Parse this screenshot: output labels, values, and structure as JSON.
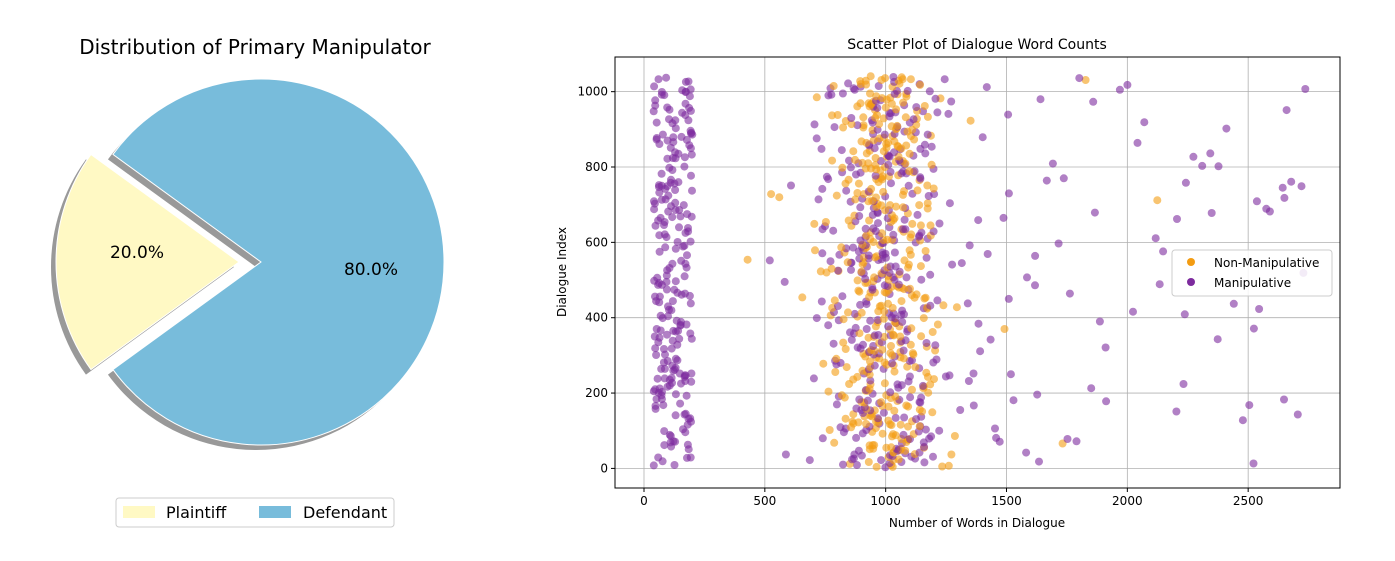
{
  "chart_data": [
    {
      "type": "pie",
      "title": "Distribution of Primary Manipulator",
      "slices": [
        {
          "label": "Plaintiff",
          "value": 20.0,
          "pct_label": "20.0%",
          "color": "#fff9c4",
          "exploded": true
        },
        {
          "label": "Defendant",
          "value": 80.0,
          "pct_label": "80.0%",
          "color": "#78bcdb",
          "exploded": false
        }
      ],
      "shadow": true,
      "legend": {
        "placement": "bottom-center",
        "entries": [
          "Plaintiff",
          "Defendant"
        ]
      }
    },
    {
      "type": "scatter",
      "title": "Scatter Plot of Dialogue Word Counts",
      "xlabel": "Number of Words in Dialogue",
      "ylabel": "Dialogue Index",
      "xlim": [
        -120,
        2880
      ],
      "ylim": [
        -52,
        1092
      ],
      "xticks": [
        0,
        500,
        1000,
        1500,
        2000,
        2500
      ],
      "yticks": [
        0,
        200,
        400,
        600,
        800,
        1000
      ],
      "grid": true,
      "legend": {
        "placement": "center-right"
      },
      "series": [
        {
          "name": "Non-Manipulative",
          "color": "#f39c12",
          "count": 400,
          "x_distribution": {
            "center": 1000,
            "spread": 280,
            "min": 300,
            "max": 2200
          }
        },
        {
          "name": "Manipulative",
          "color": "#7d2b9e",
          "count": 640,
          "x_distribution": {
            "cluster_low": [
              40,
              200
            ],
            "cluster_mid": [
              500,
              1450
            ],
            "tail": [
              1450,
              2750
            ]
          }
        }
      ]
    }
  ]
}
